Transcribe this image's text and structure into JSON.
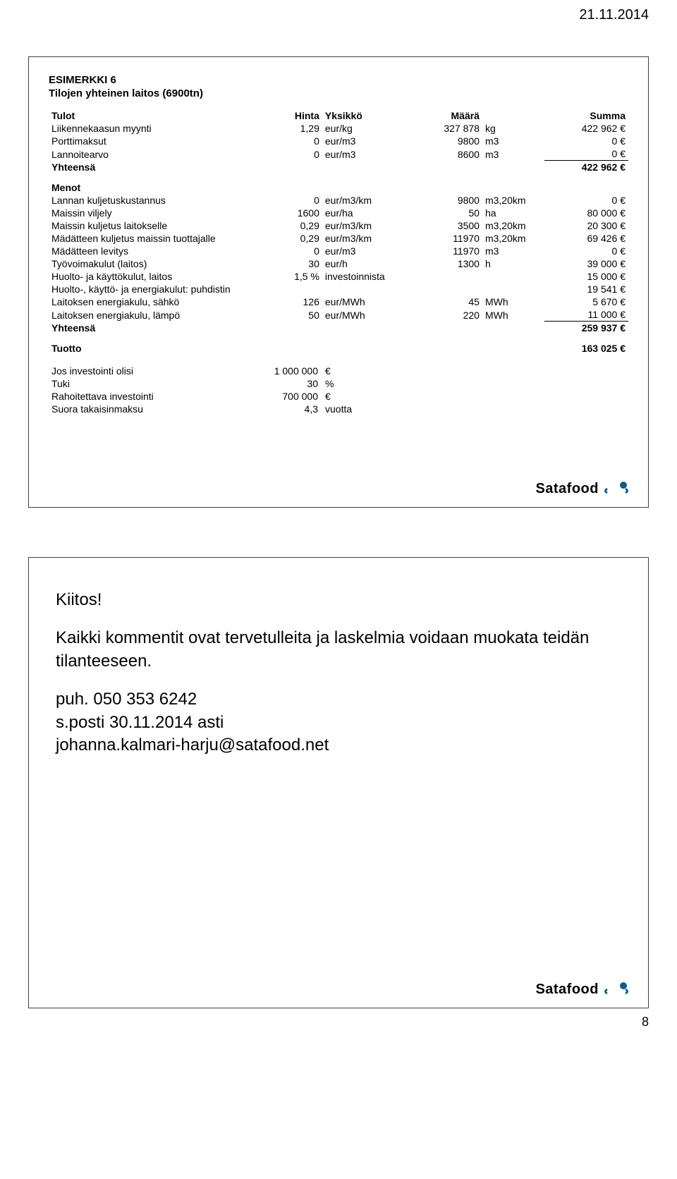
{
  "page_date": "21.11.2014",
  "page_number": "8",
  "slide1": {
    "title": "ESIMERKKI 6",
    "subtitle": "Tilojen yhteinen laitos (6900tn)",
    "header": {
      "c1": "Tulot",
      "c2": "Hinta",
      "c3": "Yksikkö",
      "c4": "Määrä",
      "c5": "",
      "c6": "Summa"
    },
    "tulot": [
      {
        "lbl": "Liikennekaasun myynti",
        "c2": "1,29",
        "c3": "eur/kg",
        "c4": "327 878",
        "c5": "kg",
        "c6": "422 962 €"
      },
      {
        "lbl": "Porttimaksut",
        "c2": "0",
        "c3": "eur/m3",
        "c4": "9800",
        "c5": "m3",
        "c6": "0 €"
      },
      {
        "lbl": "Lannoitearvo",
        "c2": "0",
        "c3": "eur/m3",
        "c4": "8600",
        "c5": "m3",
        "c6": "0 €",
        "ul": true
      }
    ],
    "tulot_sum": {
      "lbl": "Yhteensä",
      "c6": "422 962 €"
    },
    "menot_label": "Menot",
    "menot": [
      {
        "lbl": "Lannan kuljetuskustannus",
        "c2": "0",
        "c3": "eur/m3/km",
        "c4": "9800",
        "c5": "m3,20km",
        "c6": "0 €"
      },
      {
        "lbl": "Maissin viljely",
        "c2": "1600",
        "c3": "eur/ha",
        "c4": "50",
        "c5": "ha",
        "c6": "80 000 €"
      },
      {
        "lbl": "Maissin kuljetus laitokselle",
        "c2": "0,29",
        "c3": "eur/m3/km",
        "c4": "3500",
        "c5": "m3,20km",
        "c6": "20 300 €"
      },
      {
        "lbl": "Mädätteen kuljetus maissin tuottajalle",
        "c2": "0,29",
        "c3": "eur/m3/km",
        "c4": "11970",
        "c5": "m3,20km",
        "c6": "69 426 €"
      },
      {
        "lbl": "Mädätteen levitys",
        "c2": "0",
        "c3": "eur/m3",
        "c4": "11970",
        "c5": "m3",
        "c6": "0 €"
      },
      {
        "lbl": "Työvoimakulut (laitos)",
        "c2": "30",
        "c3": "eur/h",
        "c4": "1300",
        "c5": "h",
        "c6": "39 000 €"
      },
      {
        "lbl": "Huolto- ja käyttökulut, laitos",
        "c2": "1,5 %",
        "c3": "investoinnista",
        "c4": "",
        "c5": "",
        "c6": "15 000 €"
      },
      {
        "lbl": "Huolto-, käyttö- ja energiakulut: puhdistin",
        "c2": "",
        "c3": "",
        "c4": "",
        "c5": "",
        "c6": "19 541 €"
      },
      {
        "lbl": "Laitoksen energiakulu, sähkö",
        "c2": "126",
        "c3": "eur/MWh",
        "c4": "45",
        "c5": "MWh",
        "c6": "5 670 €"
      },
      {
        "lbl": "Laitoksen energiakulu, lämpö",
        "c2": "50",
        "c3": "eur/MWh",
        "c4": "220",
        "c5": "MWh",
        "c6": "11 000 €",
        "ul": true
      }
    ],
    "menot_sum": {
      "lbl": "Yhteensä",
      "c6": "259 937 €"
    },
    "tuotto": {
      "lbl": "Tuotto",
      "c6": "163 025 €"
    },
    "footer": [
      {
        "lbl": "Jos investointi olisi",
        "val": "1 000 000",
        "suffix": "€"
      },
      {
        "lbl": "Tuki",
        "val": "30",
        "suffix": "%"
      },
      {
        "lbl": "Rahoitettava investointi",
        "val": "700 000",
        "suffix": "€"
      },
      {
        "lbl": "Suora takaisinmaksu",
        "val": "4,3",
        "suffix": "vuotta"
      }
    ],
    "logo_text": "Satafood"
  },
  "slide2": {
    "kiitos": "Kiitos!",
    "para": "Kaikki kommentit ovat tervetulleita ja laskelmia voidaan muokata teidän tilanteeseen.",
    "puh": "puh. 050 353 6242",
    "posti": "s.posti 30.11.2014 asti",
    "email": "johanna.kalmari-harju@satafood.net",
    "logo_text": "Satafood"
  }
}
